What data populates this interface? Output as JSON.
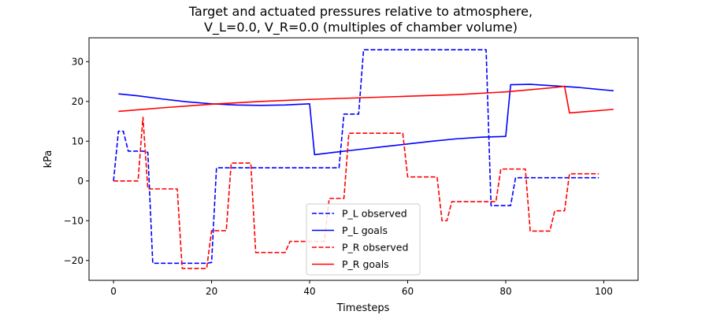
{
  "chart_data": {
    "type": "line",
    "title": [
      "Target and actuated pressures relative to atmosphere,",
      "V_L=0.0,     V_R=0.0 (multiples of chamber volume)"
    ],
    "xlabel": "Timesteps",
    "ylabel": "kPa",
    "xlim": [
      -5,
      107
    ],
    "ylim": [
      -25,
      36
    ],
    "xticks": [
      0,
      20,
      40,
      60,
      80,
      100
    ],
    "yticks": [
      -20,
      -10,
      0,
      10,
      20,
      30
    ],
    "legend_position": "lower-center",
    "series": [
      {
        "name": "P_L observed",
        "color": "#0000ff",
        "dash": "dashed",
        "points": [
          [
            0,
            0
          ],
          [
            1,
            12.5
          ],
          [
            2,
            12.5
          ],
          [
            3,
            7.5
          ],
          [
            6,
            7.5
          ],
          [
            7,
            7.2
          ],
          [
            8,
            -20.7
          ],
          [
            19,
            -20.7
          ],
          [
            20,
            -20.5
          ],
          [
            21,
            3.3
          ],
          [
            46,
            3.3
          ],
          [
            47,
            16.8
          ],
          [
            50,
            16.8
          ],
          [
            51,
            33
          ],
          [
            76,
            33
          ],
          [
            77,
            -6.2
          ],
          [
            81,
            -6.2
          ],
          [
            82,
            0.8
          ],
          [
            99,
            0.8
          ]
        ]
      },
      {
        "name": "P_L goals",
        "color": "#0000ff",
        "dash": "solid",
        "points": [
          [
            1,
            21.9
          ],
          [
            5,
            21.4
          ],
          [
            10,
            20.6
          ],
          [
            15,
            19.9
          ],
          [
            20,
            19.4
          ],
          [
            25,
            19.1
          ],
          [
            30,
            19.0
          ],
          [
            35,
            19.1
          ],
          [
            40,
            19.4
          ],
          [
            41,
            6.6
          ],
          [
            45,
            7.2
          ],
          [
            50,
            7.9
          ],
          [
            55,
            8.6
          ],
          [
            60,
            9.3
          ],
          [
            65,
            10.0
          ],
          [
            70,
            10.6
          ],
          [
            75,
            11.0
          ],
          [
            80,
            11.2
          ],
          [
            81,
            24.2
          ],
          [
            85,
            24.3
          ],
          [
            90,
            23.9
          ],
          [
            95,
            23.5
          ],
          [
            100,
            22.9
          ],
          [
            102,
            22.7
          ]
        ]
      },
      {
        "name": "P_R observed",
        "color": "#ff0000",
        "dash": "dashed",
        "points": [
          [
            0,
            0
          ],
          [
            5,
            0
          ],
          [
            6,
            16
          ],
          [
            7,
            -2
          ],
          [
            13,
            -2
          ],
          [
            14,
            -22
          ],
          [
            19,
            -22
          ],
          [
            20,
            -12.5
          ],
          [
            23,
            -12.5
          ],
          [
            24,
            4.5
          ],
          [
            28,
            4.5
          ],
          [
            29,
            -18
          ],
          [
            35,
            -18
          ],
          [
            36,
            -15.2
          ],
          [
            40,
            -15.2
          ],
          [
            43,
            -15.2
          ],
          [
            44,
            -4.4
          ],
          [
            47,
            -4.4
          ],
          [
            48,
            12
          ],
          [
            59,
            12
          ],
          [
            60,
            1
          ],
          [
            66,
            1
          ],
          [
            67,
            -10
          ],
          [
            68,
            -10
          ],
          [
            69,
            -5.2
          ],
          [
            78,
            -5.2
          ],
          [
            79,
            3
          ],
          [
            84,
            3
          ],
          [
            85,
            -12.6
          ],
          [
            89,
            -12.6
          ],
          [
            90,
            -7.5
          ],
          [
            92,
            -7.5
          ],
          [
            93,
            1.8
          ],
          [
            99,
            1.8
          ]
        ]
      },
      {
        "name": "P_R goals",
        "color": "#ff0000",
        "dash": "solid",
        "points": [
          [
            1,
            17.5
          ],
          [
            10,
            18.4
          ],
          [
            20,
            19.3
          ],
          [
            30,
            20.0
          ],
          [
            40,
            20.5
          ],
          [
            50,
            20.9
          ],
          [
            60,
            21.3
          ],
          [
            70,
            21.7
          ],
          [
            80,
            22.4
          ],
          [
            90,
            23.5
          ],
          [
            92,
            23.8
          ],
          [
            93,
            17.1
          ],
          [
            102,
            18.0
          ]
        ]
      }
    ]
  }
}
